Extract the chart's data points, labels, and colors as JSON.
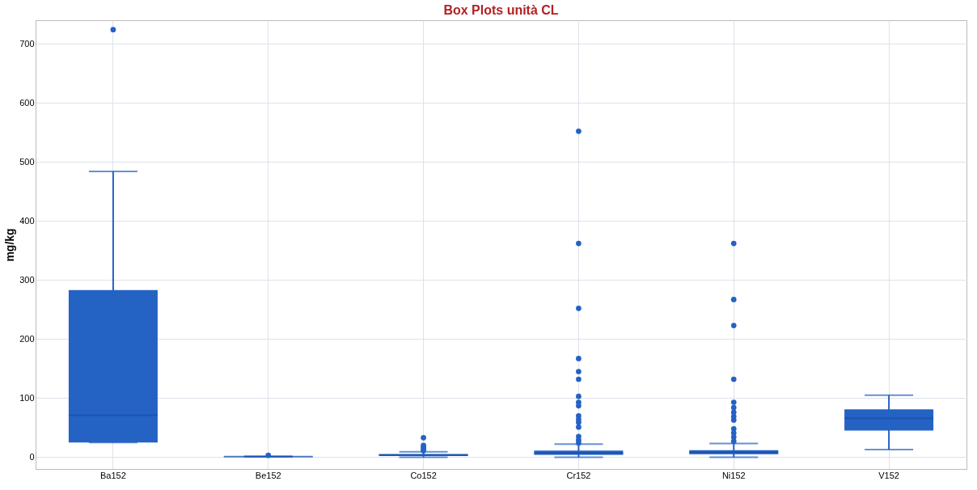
{
  "chart_data": {
    "type": "box",
    "title": "Box Plots unità CL",
    "ylabel": "mg/kg",
    "categories": [
      "Ba152",
      "Be152",
      "Co152",
      "Cr152",
      "Ni152",
      "V152"
    ],
    "boxes": [
      {
        "low": 25,
        "q1": 25,
        "median": 71,
        "q3": 283,
        "high": 484,
        "outliers": [
          724
        ]
      },
      {
        "low": 0.5,
        "q1": 0.8,
        "median": 1,
        "q3": 1.2,
        "high": 1.5,
        "outliers": [
          3
        ]
      },
      {
        "low": 0,
        "q1": 2,
        "median": 4,
        "q3": 5,
        "high": 9,
        "outliers": [
          33,
          20,
          17,
          14,
          11
        ]
      },
      {
        "low": 0,
        "q1": 4,
        "median": 7,
        "q3": 11,
        "high": 22,
        "outliers": [
          552,
          362,
          252,
          167,
          145,
          132,
          103,
          93,
          87,
          70,
          64,
          59,
          51,
          35,
          29,
          24
        ]
      },
      {
        "low": 0,
        "q1": 5,
        "median": 8,
        "q3": 12,
        "high": 23,
        "outliers": [
          362,
          267,
          223,
          132,
          93,
          84,
          76,
          69,
          63,
          48,
          41,
          34,
          27
        ]
      },
      {
        "low": 13,
        "q1": 45,
        "median": 66,
        "q3": 81,
        "high": 105
      }
    ],
    "color": "#2462c4",
    "ylim": [
      -20,
      740
    ],
    "yticks": [
      0,
      100,
      200,
      300,
      400,
      500,
      600,
      700
    ],
    "grid": true
  }
}
